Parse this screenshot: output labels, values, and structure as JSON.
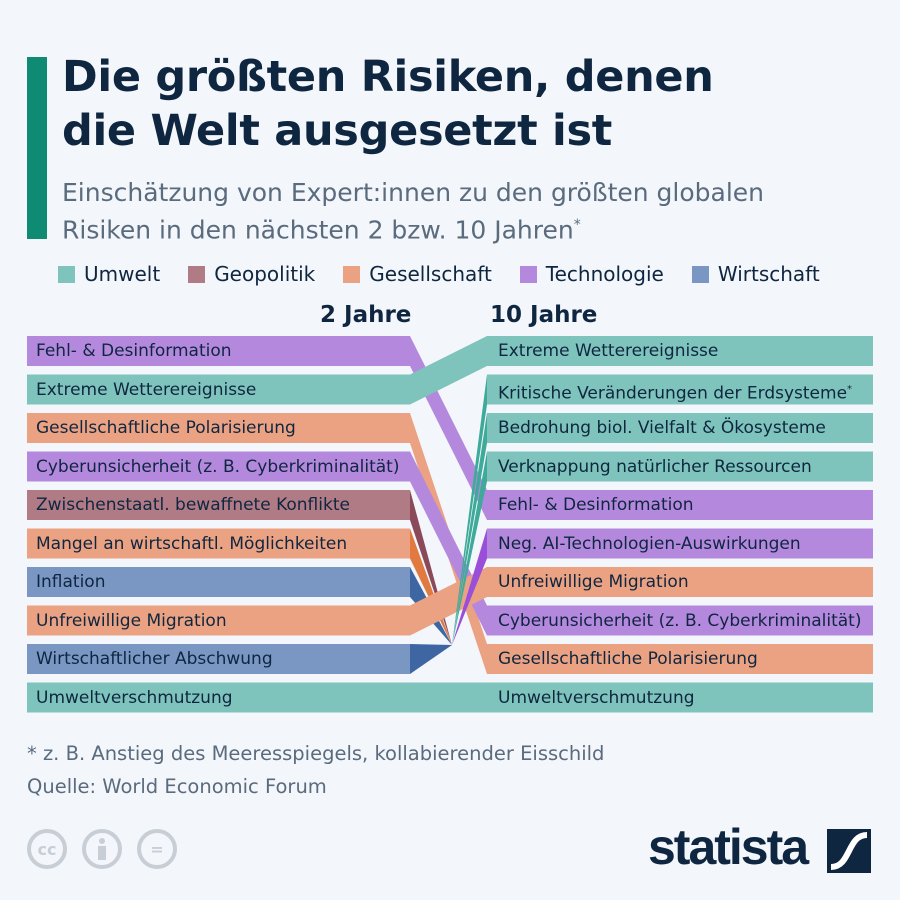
{
  "title_line1": "Die größten Risiken, denen",
  "title_line2": "die Welt ausgesetzt ist",
  "subtitle_line1": "Einschätzung von Expert:innen zu den größten globalen",
  "subtitle_line2": "Risiken in den nächsten 2 bzw. 10 Jahren",
  "subtitle_mark": "*",
  "legend": [
    {
      "label": "Umwelt",
      "color": "#7fc4bc"
    },
    {
      "label": "Geopolitik",
      "color": "#b07b85"
    },
    {
      "label": "Gesellschaft",
      "color": "#eba283"
    },
    {
      "label": "Technologie",
      "color": "#b489dd"
    },
    {
      "label": "Wirtschaft",
      "color": "#7a97c4"
    }
  ],
  "chart_data": {
    "type": "bump",
    "columns": [
      "2 Jahre",
      "10 Jahre"
    ],
    "categories_colors": {
      "Umwelt": {
        "bar": "#7fc4bc",
        "flow": "#3daa9a"
      },
      "Geopolitik": {
        "bar": "#b07b85",
        "flow": "#8b4a5a"
      },
      "Gesellschaft": {
        "bar": "#eba283",
        "flow": "#e07a40"
      },
      "Technologie": {
        "bar": "#b489dd",
        "flow": "#9a4fd8"
      },
      "Wirtschaft": {
        "bar": "#7a97c4",
        "flow": "#3e66a3"
      }
    },
    "two_years": [
      {
        "rank": 1,
        "label": "Fehl- & Desinformation",
        "category": "Technologie"
      },
      {
        "rank": 2,
        "label": "Extreme Wetterereignisse",
        "category": "Umwelt"
      },
      {
        "rank": 3,
        "label": "Gesellschaftliche Polarisierung",
        "category": "Gesellschaft"
      },
      {
        "rank": 4,
        "label": "Cyberunsicherheit (z. B. Cyberkriminalität)",
        "category": "Technologie"
      },
      {
        "rank": 5,
        "label": "Zwischenstaatl. bewaffnete Konflikte",
        "category": "Geopolitik"
      },
      {
        "rank": 6,
        "label": "Mangel an wirtschaftl. Möglichkeiten",
        "category": "Gesellschaft"
      },
      {
        "rank": 7,
        "label": "Inflation",
        "category": "Wirtschaft"
      },
      {
        "rank": 8,
        "label": "Unfreiwillige Migration",
        "category": "Gesellschaft"
      },
      {
        "rank": 9,
        "label": "Wirtschaftlicher Abschwung",
        "category": "Wirtschaft"
      },
      {
        "rank": 10,
        "label": "Umweltverschmutzung",
        "category": "Umwelt"
      }
    ],
    "ten_years": [
      {
        "rank": 1,
        "label": "Extreme Wetterereignisse",
        "category": "Umwelt"
      },
      {
        "rank": 2,
        "label": "Kritische Veränderungen der Erdsysteme",
        "mark": "*",
        "category": "Umwelt"
      },
      {
        "rank": 3,
        "label": "Bedrohung biol. Vielfalt & Ökosysteme",
        "category": "Umwelt"
      },
      {
        "rank": 4,
        "label": "Verknappung natürlicher Ressourcen",
        "category": "Umwelt"
      },
      {
        "rank": 5,
        "label": "Fehl- & Desinformation",
        "category": "Technologie"
      },
      {
        "rank": 6,
        "label": "Neg. AI-Technologien-Auswirkungen",
        "category": "Technologie"
      },
      {
        "rank": 7,
        "label": "Unfreiwillige Migration",
        "category": "Gesellschaft"
      },
      {
        "rank": 8,
        "label": "Cyberunsicherheit (z. B. Cyberkriminalität)",
        "category": "Technologie"
      },
      {
        "rank": 9,
        "label": "Gesellschaftliche Polarisierung",
        "category": "Gesellschaft"
      },
      {
        "rank": 10,
        "label": "Umweltverschmutzung",
        "category": "Umwelt"
      }
    ]
  },
  "footnote": "* z. B. Anstieg des Meeresspiegels, kollabierender Eisschild",
  "source": "Quelle: World Economic Forum",
  "license_icons": [
    "cc-icon",
    "attribution-icon",
    "no-derivatives-icon"
  ],
  "license_text": {
    "cc": "cc",
    "eq": "="
  },
  "logo_text": "statista"
}
